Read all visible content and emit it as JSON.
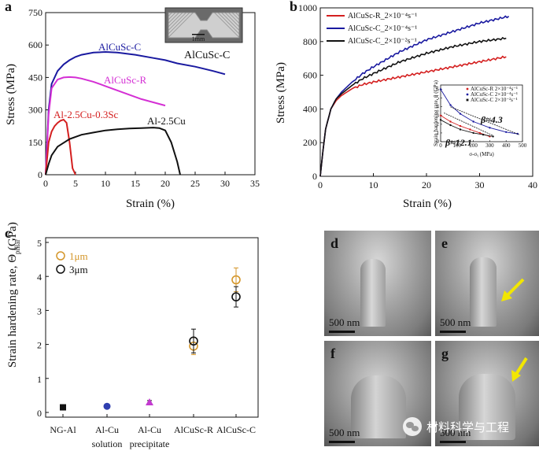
{
  "panel_a": {
    "letter": "a",
    "ylabel": "Stress (MPa)",
    "xlabel": "Strain (%)",
    "yticks": [
      "0",
      "150",
      "300",
      "450",
      "600",
      "750"
    ],
    "xticks": [
      "0",
      "5",
      "10",
      "15",
      "20",
      "25",
      "30",
      "35"
    ],
    "labels": {
      "alcusc_c": "AlCuSc-C",
      "alcusc_r": "AlCuSc-R",
      "al25cu03sc": "Al-2.5Cu-0.3Sc",
      "al25cu": "Al-2.5Cu"
    },
    "inset_label": "AlCuSc-C",
    "inset_scale": "1mm"
  },
  "panel_b": {
    "letter": "b",
    "ylabel": "Stress (MPa)",
    "xlabel": "Strain (%)",
    "yticks": [
      "0",
      "200",
      "400",
      "600",
      "800",
      "1000"
    ],
    "xticks": [
      "0",
      "10",
      "20",
      "30",
      "40"
    ],
    "legend": [
      "AlCuSc-R_2×10⁻⁴s⁻¹",
      "AlCuSc-C_2×10⁻⁴s⁻¹",
      "AlCuSc-C_2×10⁻²s⁻¹"
    ],
    "inset": {
      "ylabel": "Strain hardening rate, θ (GPa)",
      "xlabel": "σ-σᵧ (MPa)",
      "xticks": [
        "0",
        "100",
        "200",
        "300",
        "400",
        "500"
      ],
      "yticks": [
        "0",
        "1",
        "2",
        "3",
        "4",
        "5",
        "6"
      ],
      "legend": [
        "AlCuSc-R 2×10⁻⁴s⁻¹",
        "AlCuSc-C 2×10⁻⁴s⁻¹",
        "AlCuSc-C 2×10⁻²s⁻¹"
      ],
      "beta1": "β≈4.3",
      "beta2": "β≈12.1"
    }
  },
  "panel_c": {
    "letter": "c",
    "ylabel": "Strain hardening rate, Θ",
    "ylabel_sub": "pillar",
    "ylabel_unit": "(GPa)",
    "yticks": [
      "0",
      "1",
      "2",
      "3",
      "4",
      "5"
    ],
    "categories": [
      "NG-Al",
      "Al-Cu",
      "Al-Cu",
      "AlCuSc-R",
      "AlCuSc-C"
    ],
    "category_sub": [
      "",
      "solution",
      "precipitate",
      "",
      ""
    ],
    "legend": [
      "1μm",
      "3μm"
    ],
    "colors": {
      "one_um": "#d4962a",
      "three_um": "#111111"
    }
  },
  "sem": {
    "panels": [
      "d",
      "e",
      "f",
      "g"
    ],
    "scale_label": "500 nm",
    "arrow_color": "#f2e600"
  },
  "watermark": "材料科学与工程",
  "chart_data": [
    {
      "type": "line",
      "title": "",
      "xlabel": "Strain (%)",
      "ylabel": "Stress (MPa)",
      "xlim": [
        0,
        35
      ],
      "ylim": [
        0,
        750
      ],
      "series": [
        {
          "name": "AlCuSc-C",
          "color": "#1a1aa0",
          "x": [
            0,
            0.5,
            1,
            2,
            3,
            4,
            5,
            6,
            8,
            10,
            12,
            15,
            18,
            20,
            22,
            25,
            28,
            30
          ],
          "y": [
            0,
            300,
            420,
            480,
            510,
            530,
            545,
            555,
            565,
            568,
            565,
            555,
            540,
            530,
            515,
            500,
            480,
            465
          ]
        },
        {
          "name": "AlCuSc-R",
          "color": "#d42fd4",
          "x": [
            0,
            0.5,
            1,
            2,
            3,
            4,
            5,
            6,
            8,
            10,
            12,
            14,
            16,
            18,
            20
          ],
          "y": [
            0,
            280,
            400,
            440,
            450,
            452,
            450,
            445,
            430,
            410,
            390,
            370,
            350,
            335,
            320
          ]
        },
        {
          "name": "Al-2.5Cu-0.3Sc",
          "color": "#d42020",
          "x": [
            0,
            0.5,
            1,
            1.5,
            2,
            2.5,
            3,
            3.5,
            4,
            4.5,
            5
          ],
          "y": [
            0,
            150,
            200,
            225,
            240,
            250,
            255,
            240,
            150,
            30,
            0
          ]
        },
        {
          "name": "Al-2.5Cu",
          "color": "#111111",
          "x": [
            0,
            0.5,
            1,
            2,
            4,
            6,
            8,
            10,
            12,
            14,
            16,
            18,
            19,
            20,
            21,
            22,
            22.5
          ],
          "y": [
            0,
            50,
            90,
            130,
            165,
            185,
            195,
            205,
            210,
            214,
            216,
            218,
            216,
            205,
            150,
            60,
            0
          ]
        }
      ]
    },
    {
      "type": "line",
      "title": "",
      "xlabel": "Strain (%)",
      "ylabel": "Stress (MPa)",
      "xlim": [
        0,
        40
      ],
      "ylim": [
        0,
        1000
      ],
      "series": [
        {
          "name": "AlCuSc-R_2×10⁻⁴s⁻¹",
          "color": "#d42020",
          "x": [
            0,
            0.5,
            1,
            2,
            3,
            4,
            6,
            8,
            10,
            15,
            20,
            25,
            30,
            35
          ],
          "y": [
            0,
            150,
            280,
            400,
            450,
            480,
            520,
            545,
            560,
            590,
            620,
            650,
            680,
            710
          ]
        },
        {
          "name": "AlCuSc-C_2×10⁻⁴s⁻¹",
          "color": "#1a1aa0",
          "x": [
            0,
            0.5,
            1,
            2,
            3,
            4,
            6,
            8,
            10,
            15,
            20,
            25,
            30,
            35.5
          ],
          "y": [
            0,
            150,
            280,
            400,
            460,
            500,
            560,
            610,
            650,
            740,
            810,
            860,
            910,
            950
          ]
        },
        {
          "name": "AlCuSc-C_2×10⁻²s⁻¹",
          "color": "#111111",
          "x": [
            0,
            0.5,
            1,
            2,
            3,
            4,
            6,
            8,
            10,
            15,
            20,
            25,
            30,
            35
          ],
          "y": [
            0,
            150,
            280,
            400,
            460,
            490,
            540,
            580,
            610,
            680,
            730,
            770,
            800,
            820
          ]
        }
      ]
    },
    {
      "type": "scatter",
      "title": "",
      "xlabel": "",
      "ylabel": "Strain hardening rate, Θpillar (GPa)",
      "ylim": [
        0,
        5
      ],
      "categories": [
        "NG-Al",
        "Al-Cu solution",
        "Al-Cu precipitate",
        "AlCuSc-R",
        "AlCuSc-C"
      ],
      "series": [
        {
          "name": "1μm",
          "values": [
            null,
            null,
            null,
            1.95,
            3.9
          ],
          "errors": [
            null,
            null,
            null,
            0.25,
            0.35
          ]
        },
        {
          "name": "3μm",
          "values": [
            0.15,
            0.18,
            0.3,
            2.1,
            3.4
          ],
          "errors": [
            0.05,
            0.05,
            0.05,
            0.35,
            0.3
          ]
        }
      ],
      "marker_colors": [
        "#111111",
        "#2f3fb0",
        "#c33bd0",
        "#111111",
        "#111111"
      ]
    }
  ]
}
